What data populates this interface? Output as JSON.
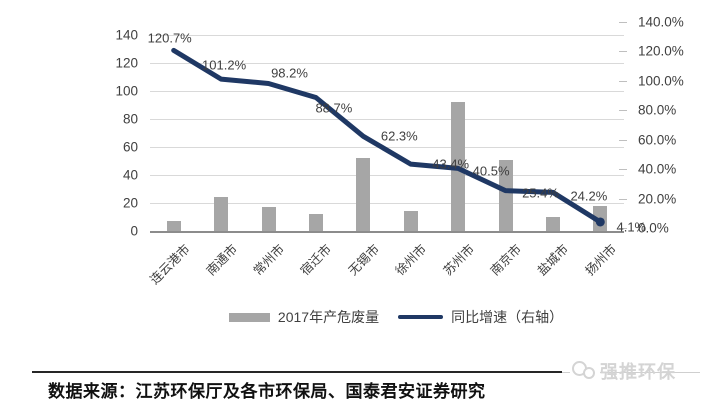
{
  "chart_data": {
    "type": "bar",
    "title": "",
    "xlabel": "",
    "ylabel": "",
    "categories": [
      "连云港市",
      "南通市",
      "常州市",
      "宿迁市",
      "无锡市",
      "徐州市",
      "苏州市",
      "南京市",
      "盐城市",
      "扬州市"
    ],
    "series": [
      {
        "name": "2017年产危废量",
        "type": "bar",
        "axis": "left",
        "values": [
          7,
          24,
          17,
          12,
          52,
          14,
          92,
          51,
          10,
          18
        ]
      },
      {
        "name": "同比增速（右轴）",
        "type": "line",
        "axis": "right",
        "values": [
          120.7,
          101.2,
          98.2,
          88.7,
          62.3,
          43.4,
          40.5,
          25.4,
          24.2,
          4.1
        ],
        "point_labels": [
          "120.7%",
          "101.2%",
          "98.2%",
          "88.7%",
          "62.3%",
          "43.4%",
          "40.5%",
          "25.4%",
          "24.2%",
          "4.1%"
        ]
      }
    ],
    "left_axis": {
      "min": 0,
      "max": 140,
      "step": 20,
      "tick_labels": [
        "140",
        "120",
        "100",
        "80",
        "60",
        "40",
        "20",
        "0"
      ]
    },
    "right_axis": {
      "min": 0,
      "max": 140,
      "step": 20,
      "tick_labels": [
        "140.0%",
        "120.0%",
        "100.0%",
        "80.0%",
        "60.0%",
        "40.0%",
        "20.0%",
        "0.0%"
      ]
    },
    "grid": true,
    "legend_position": "bottom",
    "colors": {
      "bar": "#a6a6a6",
      "line": "#1f3864",
      "grid": "#d9d9d9",
      "axis_line": "#8c8c8c",
      "label_text": "#3f3f3f"
    }
  },
  "legend": {
    "bar_label": "2017年产危废量",
    "line_label": "同比增速（右轴）"
  },
  "footer": {
    "source_text": "数据来源：江苏环保厅及各市环保局、国泰君安证券研究"
  },
  "watermark": {
    "text": "强推环保"
  }
}
